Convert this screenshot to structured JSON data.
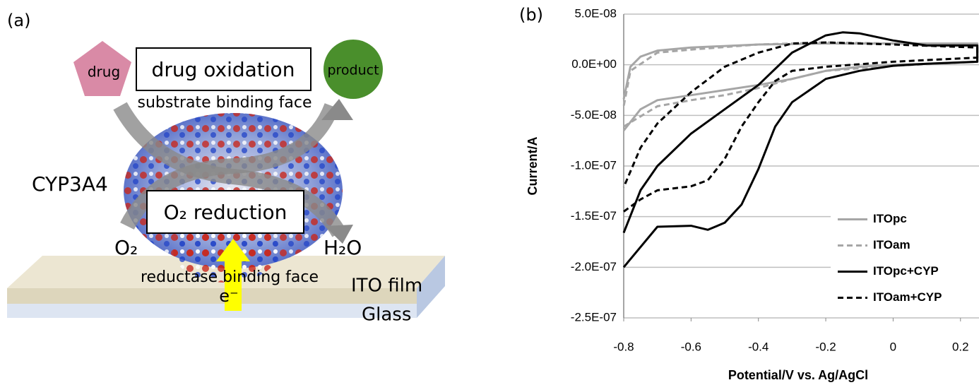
{
  "diagram": {
    "panel_label": "(a)",
    "drug": "drug",
    "reaction_top": "drug oxidation",
    "product": "product",
    "top_face": "substrate binding face",
    "enzyme": "CYP3A4",
    "reaction_bottom": "O₂ reduction",
    "reactant": "O₂",
    "water": "H₂O",
    "bottom_face": "reductase binding face",
    "electron": "e⁻",
    "film": "ITO film",
    "substrate": "Glass"
  },
  "chart_data": {
    "type": "line",
    "panel_label": "(b)",
    "xlabel": "Potential/V vs. Ag/AgCl",
    "ylabel": "Current/A",
    "xlim": [
      -0.8,
      0.255
    ],
    "ylim": [
      -2.5e-07,
      5e-08
    ],
    "xticks": [
      -0.8,
      -0.6,
      -0.4,
      -0.2,
      0,
      0.2
    ],
    "yticks": [
      {
        "value": 5e-08,
        "label": "5.0E-08"
      },
      {
        "value": 0,
        "label": "0.0E+00"
      },
      {
        "value": -5e-08,
        "label": "-5.0E-08"
      },
      {
        "value": -1e-07,
        "label": "-1.0E-07"
      },
      {
        "value": -1.5e-07,
        "label": "-1.5E-07"
      },
      {
        "value": -2e-07,
        "label": "-2.0E-07"
      },
      {
        "value": -2.5e-07,
        "label": "-2.5E-07"
      }
    ],
    "grid": true,
    "legend": "lower right",
    "series": [
      {
        "name": "ITOpc",
        "color": "#a6a6a6",
        "dashed": false,
        "x": [
          -0.8,
          -0.75,
          -0.7,
          -0.6,
          -0.5,
          -0.4,
          -0.3,
          -0.2,
          -0.1,
          0,
          0.1,
          0.25,
          0.25,
          0.1,
          0,
          -0.2,
          -0.4,
          -0.6,
          -0.7,
          -0.75,
          -0.78,
          -0.8
        ],
        "values": [
          -6.5e-08,
          -4.4e-08,
          -3.5e-08,
          -3e-08,
          -2.5e-08,
          -2e-08,
          -1.4e-08,
          -6e-09,
          -2e-09,
          0,
          1e-09,
          3e-09,
          2.1e-08,
          2.1e-08,
          2.1e-08,
          2.1e-08,
          2e-08,
          1.7e-08,
          1.4e-08,
          8e-09,
          -2e-09,
          -3.4e-08
        ]
      },
      {
        "name": "ITOam",
        "color": "#a6a6a6",
        "dashed": true,
        "x": [
          -0.8,
          -0.7,
          -0.6,
          -0.5,
          -0.4,
          -0.3,
          -0.2,
          0,
          0.25,
          0.25,
          0,
          -0.2,
          -0.4,
          -0.6,
          -0.7,
          -0.78,
          -0.8
        ],
        "values": [
          -6.1e-08,
          -4.1e-08,
          -3.5e-08,
          -3e-08,
          -2.3e-08,
          -1.4e-08,
          -6e-09,
          -1e-09,
          3e-09,
          1.9e-08,
          2.1e-08,
          2.2e-08,
          2e-08,
          1.5e-08,
          1.2e-08,
          -6e-09,
          -4.1e-08
        ]
      },
      {
        "name": "ITOpc+CYP",
        "color": "#000000",
        "dashed": false,
        "x": [
          -0.8,
          -0.7,
          -0.6,
          -0.55,
          -0.5,
          -0.45,
          -0.4,
          -0.35,
          -0.3,
          -0.2,
          -0.1,
          0,
          0.1,
          0.25,
          0.25,
          0.1,
          0,
          -0.1,
          -0.15,
          -0.2,
          -0.3,
          -0.4,
          -0.5,
          -0.6,
          -0.7,
          -0.75,
          -0.8
        ],
        "values": [
          -2e-07,
          -1.6e-07,
          -1.59e-07,
          -1.63e-07,
          -1.56e-07,
          -1.38e-07,
          -1.03e-07,
          -6.1e-08,
          -3.7e-08,
          -1.4e-08,
          -6e-09,
          -1e-09,
          1e-09,
          3e-09,
          1.9e-08,
          1.9e-08,
          2.4e-08,
          3.1e-08,
          3.2e-08,
          2.9e-08,
          1.2e-08,
          -2e-08,
          -4.4e-08,
          -6.8e-08,
          -1e-07,
          -1.24e-07,
          -1.66e-07
        ]
      },
      {
        "name": "ITOam+CYP",
        "color": "#000000",
        "dashed": true,
        "x": [
          -0.8,
          -0.75,
          -0.7,
          -0.6,
          -0.55,
          -0.5,
          -0.45,
          -0.4,
          -0.35,
          -0.3,
          -0.2,
          0,
          0.25,
          0.25,
          0,
          -0.2,
          -0.3,
          -0.4,
          -0.5,
          -0.6,
          -0.7,
          -0.75,
          -0.8
        ],
        "values": [
          -1.45e-07,
          -1.33e-07,
          -1.24e-07,
          -1.2e-07,
          -1.14e-07,
          -9.3e-08,
          -6.1e-08,
          -3.7e-08,
          -1.6e-08,
          -6e-09,
          -2e-09,
          3e-09,
          7e-09,
          1.7e-08,
          2e-08,
          2.2e-08,
          2.1e-08,
          1.2e-08,
          -2e-09,
          -2.7e-08,
          -5.8e-08,
          -8.2e-08,
          -1.21e-07
        ]
      }
    ]
  }
}
